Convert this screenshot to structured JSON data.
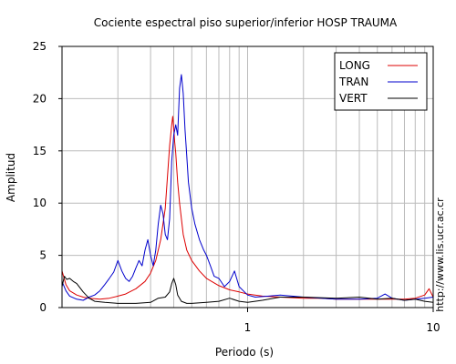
{
  "chart_data": {
    "type": "line",
    "title": "Cociente espectral piso superior/inferior  HOSP TRAUMA",
    "xlabel": "Periodo (s)",
    "ylabel": "Amplitud",
    "xscale": "log",
    "xlim": [
      0.1,
      10
    ],
    "ylim": [
      0,
      25
    ],
    "xticks": [
      1,
      10
    ],
    "xtick_labels": [
      "1",
      "10"
    ],
    "yticks": [
      0,
      5,
      10,
      15,
      20,
      25
    ],
    "ytick_labels": [
      "0",
      "5",
      "10",
      "15",
      "20",
      "25"
    ],
    "grid": true,
    "legend_position": "top-right",
    "annotation": "http://www.lis.ucr.ac.cr",
    "series": [
      {
        "name": "LONG",
        "color": "#dd0000",
        "x": [
          0.1,
          0.105,
          0.11,
          0.12,
          0.13,
          0.14,
          0.16,
          0.18,
          0.2,
          0.22,
          0.25,
          0.28,
          0.3,
          0.32,
          0.34,
          0.36,
          0.37,
          0.38,
          0.39,
          0.395,
          0.4,
          0.405,
          0.41,
          0.42,
          0.43,
          0.44,
          0.45,
          0.47,
          0.5,
          0.55,
          0.6,
          0.7,
          0.8,
          0.9,
          1.0,
          1.2,
          1.5,
          2.0,
          2.5,
          3.0,
          4.0,
          5.0,
          6.0,
          7.0,
          8.0,
          9.0,
          9.5,
          10.0
        ],
        "y": [
          3.5,
          2.2,
          1.6,
          1.2,
          1.0,
          0.9,
          0.8,
          0.9,
          1.1,
          1.3,
          1.8,
          2.5,
          3.3,
          4.5,
          6.5,
          9.5,
          12.5,
          15.5,
          17.5,
          18.3,
          17.2,
          15.8,
          14.8,
          12.0,
          10.0,
          8.5,
          7.0,
          5.5,
          4.5,
          3.5,
          2.8,
          2.1,
          1.7,
          1.5,
          1.3,
          1.1,
          1.0,
          0.9,
          0.9,
          0.8,
          0.8,
          0.8,
          0.8,
          0.8,
          0.9,
          1.2,
          1.8,
          1.0
        ]
      },
      {
        "name": "TRAN",
        "color": "#0000cc",
        "x": [
          0.1,
          0.105,
          0.11,
          0.12,
          0.13,
          0.14,
          0.15,
          0.16,
          0.17,
          0.18,
          0.19,
          0.2,
          0.21,
          0.22,
          0.23,
          0.24,
          0.25,
          0.26,
          0.27,
          0.28,
          0.29,
          0.3,
          0.31,
          0.32,
          0.33,
          0.34,
          0.35,
          0.36,
          0.37,
          0.38,
          0.39,
          0.4,
          0.41,
          0.42,
          0.43,
          0.44,
          0.45,
          0.46,
          0.47,
          0.48,
          0.5,
          0.52,
          0.55,
          0.58,
          0.6,
          0.63,
          0.66,
          0.7,
          0.75,
          0.8,
          0.85,
          0.9,
          1.0,
          1.1,
          1.3,
          1.5,
          2.0,
          2.5,
          3.0,
          4.0,
          5.0,
          5.5,
          6.0,
          7.0,
          8.0,
          9.0,
          10.0
        ],
        "y": [
          2.5,
          1.6,
          1.1,
          0.8,
          0.7,
          1.0,
          1.2,
          1.6,
          2.2,
          2.8,
          3.4,
          4.5,
          3.5,
          2.8,
          2.5,
          3.0,
          3.8,
          4.5,
          4.0,
          5.5,
          6.5,
          5.0,
          4.0,
          5.5,
          8.0,
          9.8,
          9.0,
          7.0,
          6.5,
          8.5,
          14.0,
          16.5,
          17.5,
          16.5,
          21.0,
          22.3,
          20.5,
          17.0,
          14.5,
          12.0,
          9.5,
          8.0,
          6.5,
          5.5,
          5.0,
          4.0,
          3.0,
          2.8,
          2.0,
          2.5,
          3.5,
          2.0,
          1.2,
          1.0,
          1.1,
          1.2,
          1.0,
          0.9,
          0.8,
          0.8,
          0.9,
          1.3,
          0.9,
          0.7,
          0.8,
          0.9,
          1.0
        ]
      },
      {
        "name": "VERT",
        "color": "#000000",
        "x": [
          0.1,
          0.103,
          0.106,
          0.11,
          0.115,
          0.12,
          0.13,
          0.14,
          0.15,
          0.17,
          0.2,
          0.25,
          0.3,
          0.33,
          0.36,
          0.38,
          0.39,
          0.4,
          0.41,
          0.42,
          0.44,
          0.47,
          0.5,
          0.6,
          0.7,
          0.8,
          0.9,
          1.0,
          1.2,
          1.5,
          2.0,
          3.0,
          4.0,
          5.0,
          6.0,
          7.0,
          8.0,
          9.0,
          10.0
        ],
        "y": [
          2.0,
          3.0,
          2.7,
          2.8,
          2.5,
          2.3,
          1.5,
          0.9,
          0.6,
          0.5,
          0.4,
          0.4,
          0.5,
          0.9,
          1.0,
          1.5,
          2.3,
          2.8,
          2.2,
          1.2,
          0.6,
          0.4,
          0.4,
          0.5,
          0.6,
          0.9,
          0.6,
          0.5,
          0.7,
          1.0,
          1.0,
          0.9,
          1.0,
          0.8,
          0.9,
          0.7,
          0.8,
          0.6,
          0.5
        ]
      }
    ]
  }
}
